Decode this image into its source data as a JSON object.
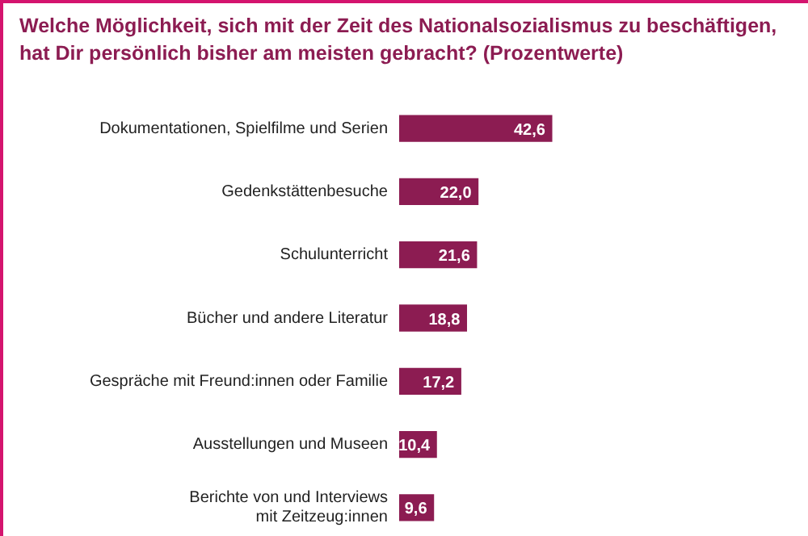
{
  "chart_data": {
    "type": "bar",
    "orientation": "horizontal",
    "title": "Welche Möglichkeit, sich mit der Zeit des Nationalsozialismus zu beschäftigen, hat Dir persönlich bisher am meisten gebracht? (Prozentwerte)",
    "categories": [
      "Dokumentationen, Spielfilme und Serien",
      "Gedenkstättenbesuche",
      "Schulunterricht",
      "Bücher und andere Literatur",
      "Gespräche mit Freund:innen oder Familie",
      "Ausstellungen und Museen",
      "Berichte von und Interviews\nmit Zeitzeug:innen"
    ],
    "values": [
      42.6,
      22.0,
      21.6,
      18.8,
      17.2,
      10.4,
      9.6
    ],
    "value_labels": [
      "42,6",
      "22,0",
      "21,6",
      "18,8",
      "17,2",
      "10,4",
      "9,6"
    ],
    "color": "#8c1c52",
    "legend": false
  }
}
